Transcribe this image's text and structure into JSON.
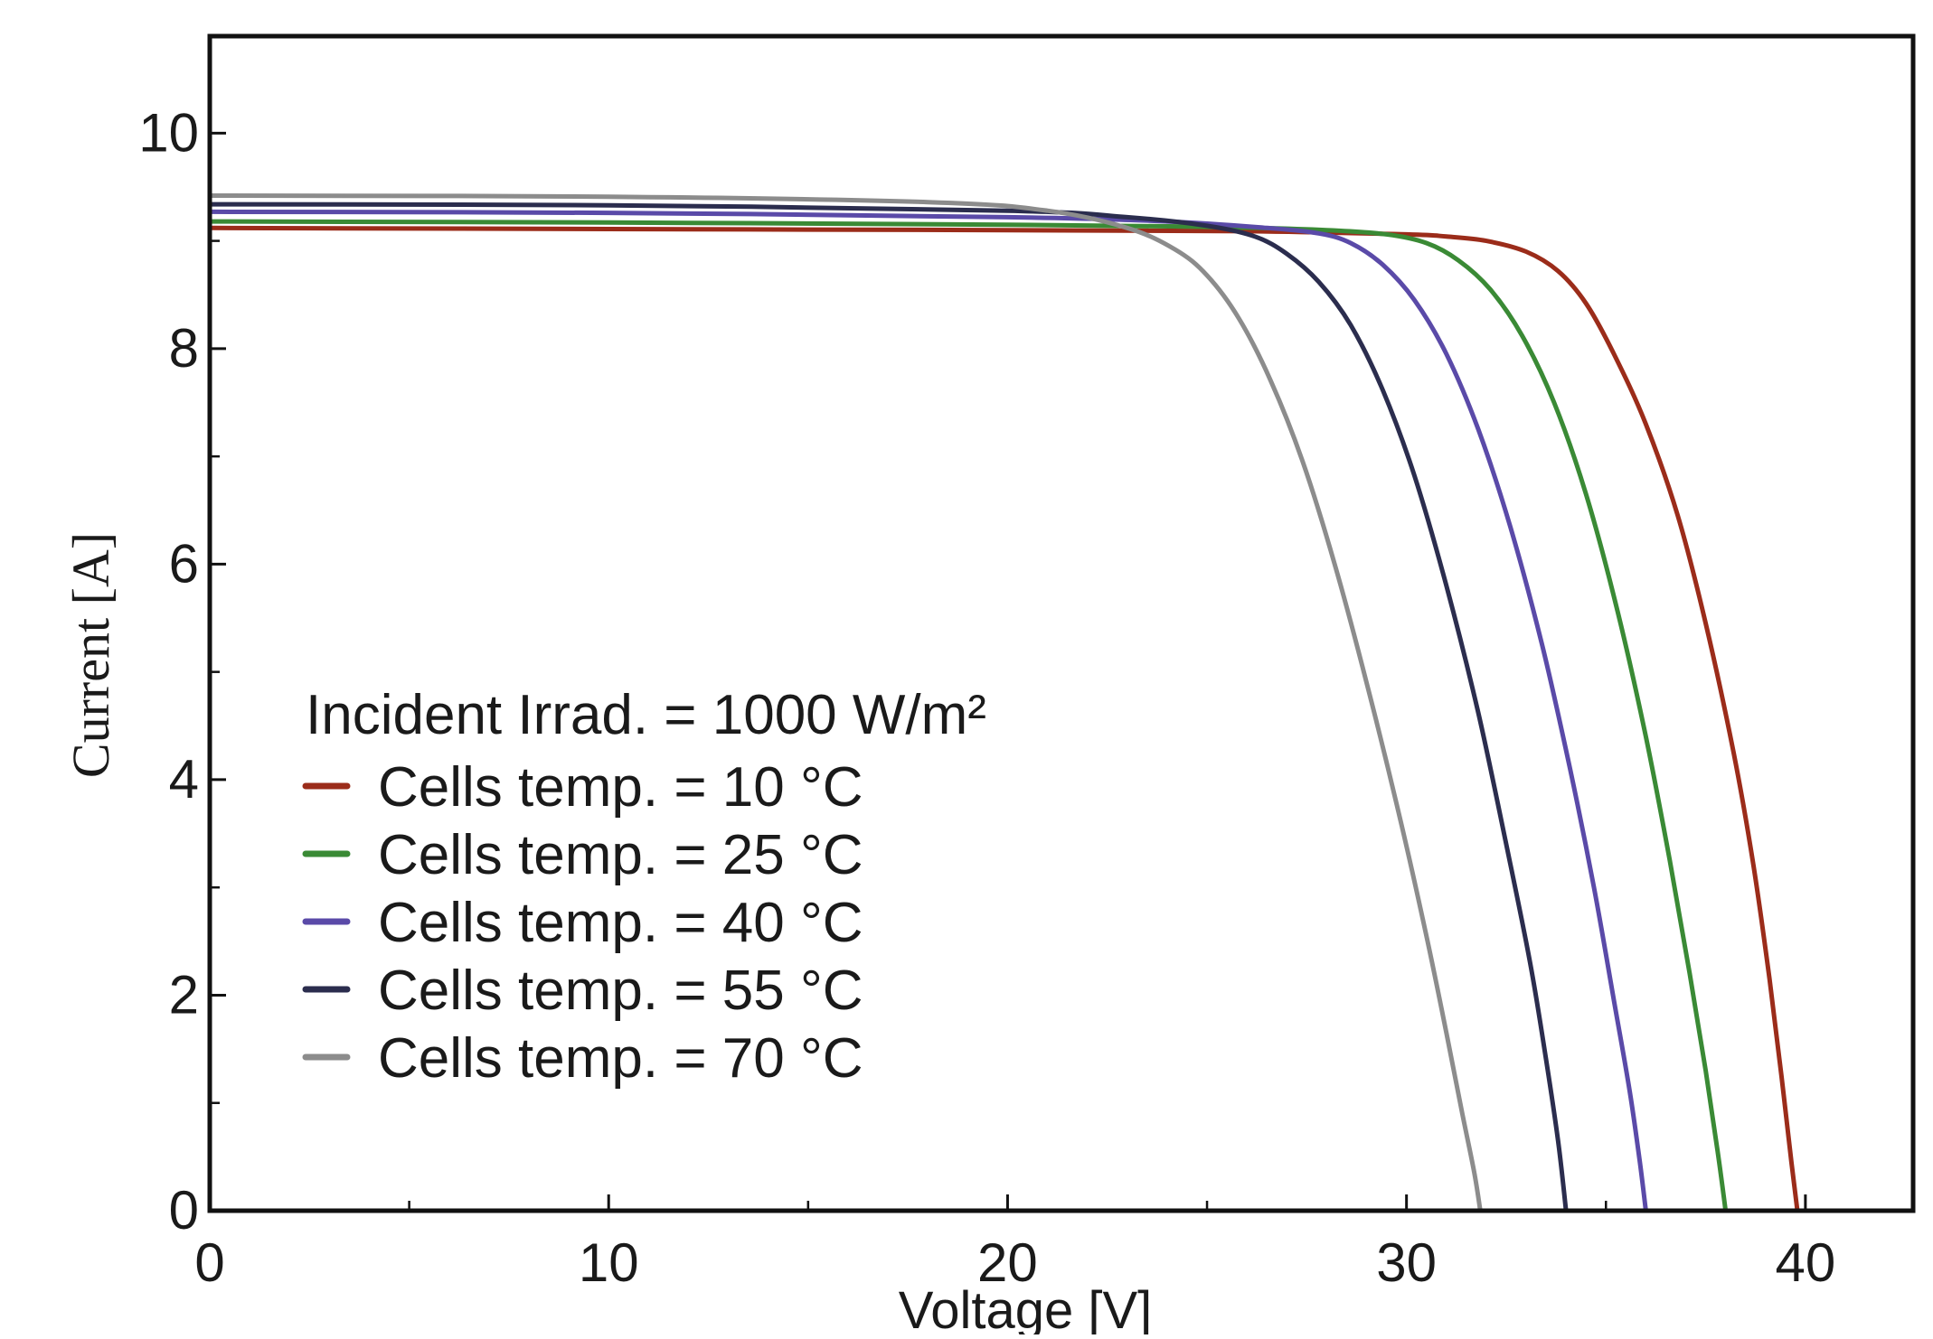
{
  "chart_data": {
    "type": "line",
    "xlabel": "Voltage [V]",
    "ylabel": "Current [A]",
    "xlim": [
      0,
      42.7
    ],
    "ylim": [
      0,
      10.9
    ],
    "x_ticks": [
      0,
      10,
      20,
      30,
      40
    ],
    "x_tick_labels": [
      "0",
      "10",
      "20",
      "30",
      "40"
    ],
    "y_ticks": [
      0,
      2,
      4,
      6,
      8,
      10
    ],
    "y_tick_labels": [
      "0",
      "2",
      "4",
      "6",
      "8",
      "10"
    ],
    "x_minor_ticks": [
      5,
      15,
      25,
      35
    ],
    "y_minor_ticks": [
      1,
      3,
      5,
      7,
      9
    ],
    "grid": false,
    "legend_title": "Incident Irrad. = 1000 W/m²",
    "legend_position": "bottom-left",
    "series": [
      {
        "name": "Cells temp. = 10 °C",
        "color": "#9b2c1a",
        "points": [
          [
            0,
            9.12
          ],
          [
            10,
            9.11
          ],
          [
            20,
            9.1
          ],
          [
            26,
            9.09
          ],
          [
            30,
            9.06
          ],
          [
            31,
            9.04
          ],
          [
            32,
            9.0
          ],
          [
            33,
            8.9
          ],
          [
            33.8,
            8.72
          ],
          [
            34.5,
            8.42
          ],
          [
            35.2,
            7.95
          ],
          [
            36,
            7.3
          ],
          [
            36.8,
            6.45
          ],
          [
            37.5,
            5.45
          ],
          [
            38.2,
            4.25
          ],
          [
            38.7,
            3.2
          ],
          [
            39.1,
            2.15
          ],
          [
            39.4,
            1.25
          ],
          [
            39.65,
            0.45
          ],
          [
            39.8,
            0
          ]
        ]
      },
      {
        "name": "Cells temp. = 25 °C",
        "color": "#3a8a35",
        "points": [
          [
            0,
            9.18
          ],
          [
            10,
            9.17
          ],
          [
            20,
            9.15
          ],
          [
            25,
            9.13
          ],
          [
            28,
            9.1
          ],
          [
            29.5,
            9.06
          ],
          [
            30.5,
            8.98
          ],
          [
            31.3,
            8.82
          ],
          [
            32.1,
            8.55
          ],
          [
            32.9,
            8.12
          ],
          [
            33.7,
            7.5
          ],
          [
            34.5,
            6.65
          ],
          [
            35.3,
            5.55
          ],
          [
            36,
            4.4
          ],
          [
            36.6,
            3.25
          ],
          [
            37.1,
            2.2
          ],
          [
            37.5,
            1.3
          ],
          [
            37.8,
            0.55
          ],
          [
            38,
            0
          ]
        ]
      },
      {
        "name": "Cells temp. = 40 °C",
        "color": "#5a4aa8",
        "points": [
          [
            0,
            9.27
          ],
          [
            10,
            9.26
          ],
          [
            20,
            9.22
          ],
          [
            24,
            9.18
          ],
          [
            26.5,
            9.12
          ],
          [
            27.8,
            9.07
          ],
          [
            28.6,
            8.98
          ],
          [
            29.4,
            8.78
          ],
          [
            30.2,
            8.45
          ],
          [
            31,
            7.95
          ],
          [
            31.8,
            7.25
          ],
          [
            32.6,
            6.35
          ],
          [
            33.4,
            5.25
          ],
          [
            34.1,
            4.1
          ],
          [
            34.7,
            3.0
          ],
          [
            35.2,
            1.95
          ],
          [
            35.6,
            1.1
          ],
          [
            35.85,
            0.45
          ],
          [
            36,
            0
          ]
        ]
      },
      {
        "name": "Cells temp. = 55 °C",
        "color": "#2b2d4e",
        "points": [
          [
            0,
            9.34
          ],
          [
            10,
            9.33
          ],
          [
            20,
            9.28
          ],
          [
            23,
            9.22
          ],
          [
            25,
            9.14
          ],
          [
            26.2,
            9.04
          ],
          [
            27,
            8.88
          ],
          [
            27.8,
            8.62
          ],
          [
            28.6,
            8.22
          ],
          [
            29.4,
            7.62
          ],
          [
            30.2,
            6.82
          ],
          [
            31,
            5.8
          ],
          [
            31.8,
            4.62
          ],
          [
            32.5,
            3.4
          ],
          [
            33.1,
            2.3
          ],
          [
            33.5,
            1.4
          ],
          [
            33.8,
            0.65
          ],
          [
            34,
            0
          ]
        ]
      },
      {
        "name": "Cells temp. = 70 °C",
        "color": "#8c8c8c",
        "points": [
          [
            0,
            9.42
          ],
          [
            10,
            9.41
          ],
          [
            18,
            9.36
          ],
          [
            21,
            9.28
          ],
          [
            23,
            9.12
          ],
          [
            24.2,
            8.92
          ],
          [
            25,
            8.68
          ],
          [
            25.8,
            8.28
          ],
          [
            26.6,
            7.7
          ],
          [
            27.4,
            6.95
          ],
          [
            28.2,
            6.0
          ],
          [
            29,
            4.9
          ],
          [
            29.8,
            3.7
          ],
          [
            30.5,
            2.55
          ],
          [
            31,
            1.65
          ],
          [
            31.4,
            0.9
          ],
          [
            31.7,
            0.35
          ],
          [
            31.85,
            0
          ]
        ]
      }
    ]
  }
}
